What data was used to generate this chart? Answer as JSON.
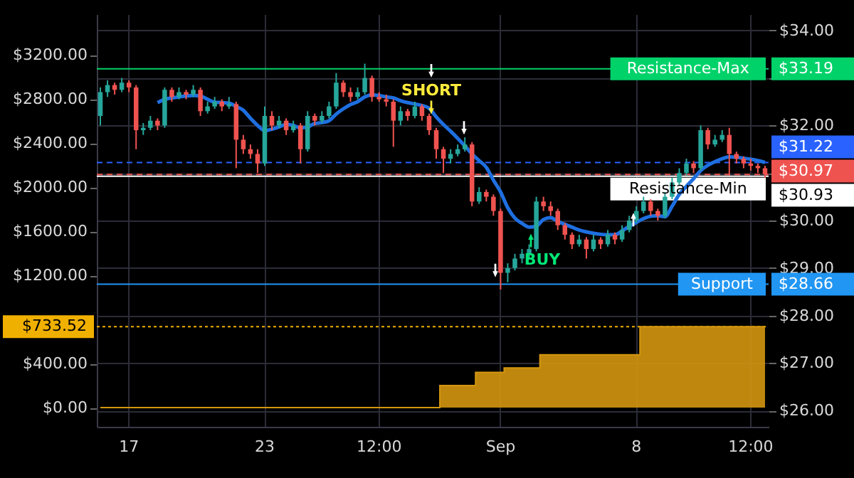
{
  "chart_data": {
    "type": "candlestick",
    "categories": [
      null,
      null,
      null,
      null,
      "17",
      null,
      null,
      null,
      null,
      null,
      null,
      null,
      null,
      null,
      null,
      null,
      null,
      null,
      null,
      null,
      null,
      null,
      null,
      "23",
      null,
      null,
      null,
      null,
      null,
      null,
      null,
      null,
      null,
      null,
      null,
      null,
      null,
      null,
      null,
      "12:00",
      null,
      null,
      null,
      null,
      null,
      null,
      null,
      null,
      null,
      null,
      null,
      null,
      null,
      null,
      null,
      null,
      "Sep",
      null,
      null,
      null,
      null,
      null,
      null,
      null,
      null,
      null,
      null,
      null,
      null,
      null,
      null,
      null,
      null,
      null,
      null,
      "8",
      null,
      null,
      null,
      null,
      null,
      null,
      null,
      null,
      null,
      null,
      null,
      null,
      null,
      null,
      null,
      "12:00",
      null,
      null
    ],
    "series": [
      {
        "type": "area",
        "axis": "y",
        "color": "#d4960f",
        "values": [
          0,
          0,
          0,
          0,
          0,
          0,
          0,
          0,
          0,
          0,
          0,
          0,
          0,
          0,
          0,
          0,
          0,
          0,
          0,
          0,
          0,
          0,
          0,
          0,
          0,
          0,
          0,
          0,
          0,
          0,
          0,
          0,
          0,
          0,
          0,
          0,
          0,
          0,
          0,
          0,
          0,
          0,
          0,
          0,
          0,
          0,
          0,
          0,
          200,
          200,
          200,
          200,
          200,
          320,
          320,
          320,
          320,
          360,
          360,
          360,
          360,
          360,
          480,
          480,
          480,
          480,
          480,
          480,
          480,
          480,
          480,
          480,
          480,
          480,
          480,
          480,
          733.52,
          733.52,
          733.52,
          733.52,
          733.52,
          733.52,
          733.52,
          733.52,
          733.52,
          733.52,
          733.52,
          733.52,
          733.52,
          733.52,
          733.52,
          733.52,
          733.52,
          733.52
        ]
      },
      {
        "type": "candlestick",
        "axis": "y2",
        "ohlc": [
          [
            32.2,
            32.8,
            32.0,
            32.7
          ],
          [
            32.7,
            32.95,
            32.6,
            32.85
          ],
          [
            32.85,
            32.9,
            32.65,
            32.75
          ],
          [
            32.75,
            33.0,
            32.7,
            32.9
          ],
          [
            32.9,
            32.95,
            32.7,
            32.8
          ],
          [
            32.8,
            32.85,
            31.5,
            31.9
          ],
          [
            31.9,
            32.05,
            31.8,
            31.95
          ],
          [
            31.95,
            32.2,
            31.9,
            32.1
          ],
          [
            32.1,
            32.15,
            31.9,
            32.0
          ],
          [
            32.0,
            32.8,
            31.95,
            32.75
          ],
          [
            32.75,
            32.8,
            32.5,
            32.6
          ],
          [
            32.6,
            32.8,
            32.55,
            32.7
          ],
          [
            32.7,
            32.75,
            32.55,
            32.65
          ],
          [
            32.65,
            32.85,
            32.6,
            32.75
          ],
          [
            32.75,
            32.8,
            32.2,
            32.3
          ],
          [
            32.3,
            32.5,
            32.25,
            32.4
          ],
          [
            32.4,
            32.6,
            32.35,
            32.5
          ],
          [
            32.5,
            32.55,
            32.3,
            32.4
          ],
          [
            32.4,
            32.6,
            32.35,
            32.45
          ],
          [
            32.45,
            32.5,
            31.1,
            31.7
          ],
          [
            31.7,
            31.8,
            31.4,
            31.5
          ],
          [
            31.5,
            31.6,
            31.3,
            31.4
          ],
          [
            31.4,
            31.5,
            31.0,
            31.2
          ],
          [
            31.2,
            32.4,
            31.15,
            32.2
          ],
          [
            32.2,
            32.3,
            31.9,
            32.0
          ],
          [
            32.0,
            32.2,
            31.95,
            32.1
          ],
          [
            32.1,
            32.15,
            31.8,
            31.9
          ],
          [
            31.9,
            32.1,
            31.85,
            32.0
          ],
          [
            32.0,
            32.05,
            31.2,
            31.5
          ],
          [
            31.5,
            32.3,
            31.45,
            32.2
          ],
          [
            32.2,
            32.25,
            32.0,
            32.1
          ],
          [
            32.1,
            32.3,
            32.05,
            32.2
          ],
          [
            32.2,
            32.5,
            32.15,
            32.4
          ],
          [
            32.4,
            33.1,
            32.35,
            32.9
          ],
          [
            32.9,
            32.95,
            32.6,
            32.7
          ],
          [
            32.7,
            32.8,
            32.5,
            32.6
          ],
          [
            32.6,
            32.8,
            32.55,
            32.7
          ],
          [
            32.7,
            33.3,
            32.65,
            33.0
          ],
          [
            33.0,
            33.05,
            32.5,
            32.6
          ],
          [
            32.6,
            32.7,
            32.5,
            32.55
          ],
          [
            32.55,
            32.65,
            32.4,
            32.5
          ],
          [
            32.5,
            32.55,
            31.55,
            32.1
          ],
          [
            32.1,
            32.4,
            32.0,
            32.3
          ],
          [
            32.3,
            32.35,
            32.1,
            32.2
          ],
          [
            32.2,
            32.5,
            32.15,
            32.4
          ],
          [
            32.4,
            32.45,
            32.1,
            32.2
          ],
          [
            32.2,
            32.25,
            31.8,
            31.9
          ],
          [
            31.9,
            31.95,
            31.3,
            31.5
          ],
          [
            31.5,
            31.55,
            31.0,
            31.3
          ],
          [
            31.3,
            31.5,
            31.2,
            31.4
          ],
          [
            31.4,
            31.6,
            31.35,
            31.5
          ],
          [
            31.5,
            31.75,
            31.45,
            31.6
          ],
          [
            31.6,
            31.65,
            30.3,
            30.4
          ],
          [
            30.4,
            30.7,
            30.35,
            30.6
          ],
          [
            30.6,
            30.65,
            30.4,
            30.5
          ],
          [
            30.5,
            30.55,
            30.1,
            30.2
          ],
          [
            30.2,
            30.25,
            28.55,
            28.9
          ],
          [
            28.9,
            29.1,
            28.7,
            29.0
          ],
          [
            29.0,
            29.3,
            28.95,
            29.2
          ],
          [
            29.2,
            29.4,
            29.1,
            29.3
          ],
          [
            29.3,
            29.5,
            29.2,
            29.4
          ],
          [
            29.4,
            30.5,
            29.35,
            30.4
          ],
          [
            30.4,
            30.5,
            30.2,
            30.3
          ],
          [
            30.3,
            30.4,
            30.1,
            30.2
          ],
          [
            30.2,
            30.25,
            29.8,
            29.9
          ],
          [
            29.9,
            29.95,
            29.6,
            29.7
          ],
          [
            29.7,
            29.75,
            29.4,
            29.5
          ],
          [
            29.5,
            29.7,
            29.45,
            29.6
          ],
          [
            29.6,
            29.65,
            29.2,
            29.4
          ],
          [
            29.4,
            29.7,
            29.35,
            29.6
          ],
          [
            29.6,
            29.65,
            29.4,
            29.5
          ],
          [
            29.5,
            29.8,
            29.45,
            29.7
          ],
          [
            29.7,
            29.75,
            29.5,
            29.6
          ],
          [
            29.6,
            29.9,
            29.55,
            29.8
          ],
          [
            29.8,
            30.1,
            29.75,
            30.0
          ],
          [
            30.0,
            30.3,
            29.95,
            30.2
          ],
          [
            30.2,
            30.5,
            30.15,
            30.4
          ],
          [
            30.4,
            30.45,
            30.1,
            30.2
          ],
          [
            30.2,
            30.25,
            30.0,
            30.1
          ],
          [
            30.1,
            30.6,
            30.05,
            30.5
          ],
          [
            30.5,
            30.9,
            30.45,
            30.8
          ],
          [
            30.8,
            31.1,
            30.75,
            31.0
          ],
          [
            31.0,
            31.3,
            30.95,
            31.2
          ],
          [
            31.2,
            31.25,
            31.0,
            31.1
          ],
          [
            31.1,
            32.0,
            31.05,
            31.9
          ],
          [
            31.9,
            31.95,
            31.5,
            31.6
          ],
          [
            31.6,
            31.8,
            31.55,
            31.7
          ],
          [
            31.7,
            31.9,
            31.65,
            31.8
          ],
          [
            31.8,
            31.95,
            30.95,
            31.4
          ],
          [
            31.4,
            31.45,
            31.2,
            31.3
          ],
          [
            31.3,
            31.35,
            31.1,
            31.2
          ],
          [
            31.2,
            31.3,
            31.05,
            31.15
          ],
          [
            31.15,
            31.2,
            31.0,
            31.1
          ],
          [
            31.1,
            31.15,
            30.9,
            30.97
          ]
        ],
        "colors": [
          "#26a69a",
          "#26a69a",
          "#ef5350",
          "#26a69a",
          "#ef5350",
          "#ef5350",
          "#26a69a",
          "#26a69a",
          "#ef5350",
          "#26a69a",
          "#ef5350",
          "#26a69a",
          "#ef5350",
          "#26a69a",
          "#ef5350",
          "#26a69a",
          "#26a69a",
          "#ef5350",
          "#26a69a",
          "#ef5350",
          "#ef5350",
          "#ef5350",
          "#ef5350",
          "#26a69a",
          "#ef5350",
          "#26a69a",
          "#ef5350",
          "#26a69a",
          "#ef5350",
          "#26a69a",
          "#ef5350",
          "#26a69a",
          "#26a69a",
          "#26a69a",
          "#ef5350",
          "#ef5350",
          "#26a69a",
          "#26a69a",
          "#ef5350",
          "#ef5350",
          "#ef5350",
          "#ef5350",
          "#26a69a",
          "#ef5350",
          "#26a69a",
          "#ef5350",
          "#ef5350",
          "#ef5350",
          "#ef5350",
          "#26a69a",
          "#26a69a",
          "#26a69a",
          "#ef5350",
          "#26a69a",
          "#ef5350",
          "#ef5350",
          "#ef5350",
          "#26a69a",
          "#26a69a",
          "#26a69a",
          "#26a69a",
          "#26a69a",
          "#ef5350",
          "#ef5350",
          "#ef5350",
          "#ef5350",
          "#ef5350",
          "#26a69a",
          "#ef5350",
          "#26a69a",
          "#ef5350",
          "#26a69a",
          "#ef5350",
          "#26a69a",
          "#26a69a",
          "#26a69a",
          "#26a69a",
          "#ef5350",
          "#ef5350",
          "#26a69a",
          "#26a69a",
          "#26a69a",
          "#26a69a",
          "#ef5350",
          "#26a69a",
          "#ef5350",
          "#26a69a",
          "#26a69a",
          "#ef5350",
          "#ef5350",
          "#ef5350",
          "#ef5350",
          "#ef5350",
          "#ef5350"
        ]
      },
      {
        "type": "line",
        "axis": "y2",
        "color": "#1e6fe0",
        "values": [
          null,
          null,
          null,
          null,
          null,
          null,
          null,
          null,
          32.48,
          32.55,
          32.58,
          32.6,
          32.62,
          32.63,
          32.62,
          32.55,
          32.49,
          32.48,
          32.47,
          32.4,
          32.32,
          32.15,
          32.0,
          31.89,
          31.92,
          31.97,
          32.02,
          32.0,
          31.95,
          31.97,
          32.04,
          32.06,
          32.1,
          32.24,
          32.35,
          32.44,
          32.5,
          32.6,
          32.64,
          32.63,
          32.6,
          32.58,
          32.52,
          32.48,
          32.45,
          32.42,
          32.36,
          32.18,
          32.02,
          31.88,
          31.73,
          31.57,
          31.4,
          31.26,
          31.12,
          30.85,
          30.6,
          30.27,
          30.05,
          29.94,
          29.86,
          29.88,
          30.02,
          30.06,
          29.98,
          29.92,
          29.86,
          29.8,
          29.76,
          29.73,
          29.71,
          29.7,
          29.7,
          29.78,
          29.88,
          29.96,
          30.04,
          30.09,
          30.1,
          30.08,
          30.3,
          30.55,
          30.72,
          30.88,
          31.05,
          31.16,
          31.24,
          31.3,
          31.34,
          31.33,
          31.31,
          31.29,
          31.26,
          31.22
        ]
      }
    ],
    "ylim": [
      -174,
      3568
    ],
    "yticks": [
      {
        "value": 0,
        "label": "$0.00"
      },
      {
        "value": 400,
        "label": "$400.00"
      },
      {
        "value": 1200,
        "label": "$1200.00"
      },
      {
        "value": 1600,
        "label": "$1600.00"
      },
      {
        "value": 2000,
        "label": "$2000.00"
      },
      {
        "value": 2400,
        "label": "$2400.00"
      },
      {
        "value": 2800,
        "label": "$2800.00"
      },
      {
        "value": 3200,
        "label": "$3200.00"
      }
    ],
    "y2lim": [
      25.66,
      34.34
    ],
    "y2ticks": [
      {
        "value": 26,
        "label": "$26.00"
      },
      {
        "value": 27,
        "label": "$27.00"
      },
      {
        "value": 28,
        "label": "$28.00"
      },
      {
        "value": 29,
        "label": "$29.00"
      },
      {
        "value": 30,
        "label": "$30.00"
      },
      {
        "value": 31,
        "label": null
      },
      {
        "value": 32,
        "label": "$32.00"
      },
      {
        "value": 33,
        "label": null
      },
      {
        "value": 34,
        "label": "$34.00"
      }
    ],
    "ref_lines": [
      {
        "axis": "y2",
        "value": 33.19,
        "label": "Resistance-Max $33.19",
        "color": "#00d26a",
        "line_style": "solid"
      },
      {
        "axis": "y2",
        "value": 31.22,
        "label": "$31.22",
        "color": "#2962ff",
        "line_style": "dashed"
      },
      {
        "axis": "y2",
        "value": 30.97,
        "label": "$30.97",
        "color": "#ef5350",
        "line_style": "dashed"
      },
      {
        "axis": "y2",
        "value": 30.93,
        "label": "Resistance-Min $30.93",
        "color": "#ffffff",
        "line_style": "solid"
      },
      {
        "axis": "y2",
        "value": 28.66,
        "label": "Support $28.66",
        "color": "#2196f3",
        "line_style": "solid"
      },
      {
        "axis": "y",
        "value": 733.52,
        "label": "$733.52",
        "color": "#f0b000",
        "line_style": "dotted"
      }
    ],
    "annotations": [
      "SHORT",
      "BUY"
    ],
    "grid": true
  }
}
